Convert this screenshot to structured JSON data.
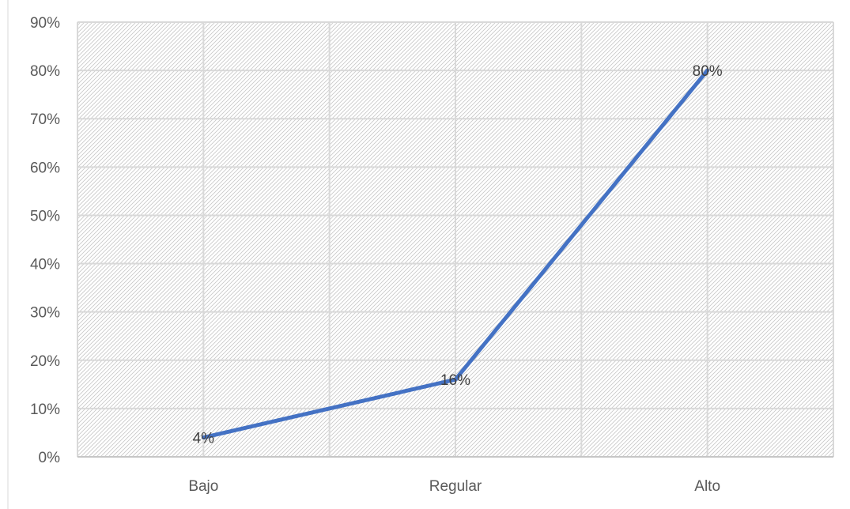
{
  "chart_data": {
    "type": "line",
    "title": "",
    "xlabel": "",
    "ylabel": "",
    "categories": [
      "Bajo",
      "Regular",
      "Alto"
    ],
    "series": [
      {
        "values": [
          0.04,
          0.16,
          0.8
        ],
        "data_labels": [
          "4%",
          "16%",
          "80%"
        ],
        "color": "#4472C4"
      }
    ],
    "ylim": [
      0,
      0.9
    ],
    "y_ticks": [
      0,
      0.1,
      0.2,
      0.3,
      0.4,
      0.5,
      0.6,
      0.7,
      0.8,
      0.9
    ],
    "y_tick_labels": [
      "0%",
      "10%",
      "20%",
      "30%",
      "40%",
      "50%",
      "60%",
      "70%",
      "80%",
      "90%"
    ],
    "grid": true,
    "legend": "none",
    "plot_background": "diagonal-hatch",
    "colors": {
      "line": "#4472C4",
      "grid": "#d9d9d9",
      "hatch": "#c8c8c8",
      "axis_text": "#595959",
      "data_label_text": "#404040"
    }
  }
}
